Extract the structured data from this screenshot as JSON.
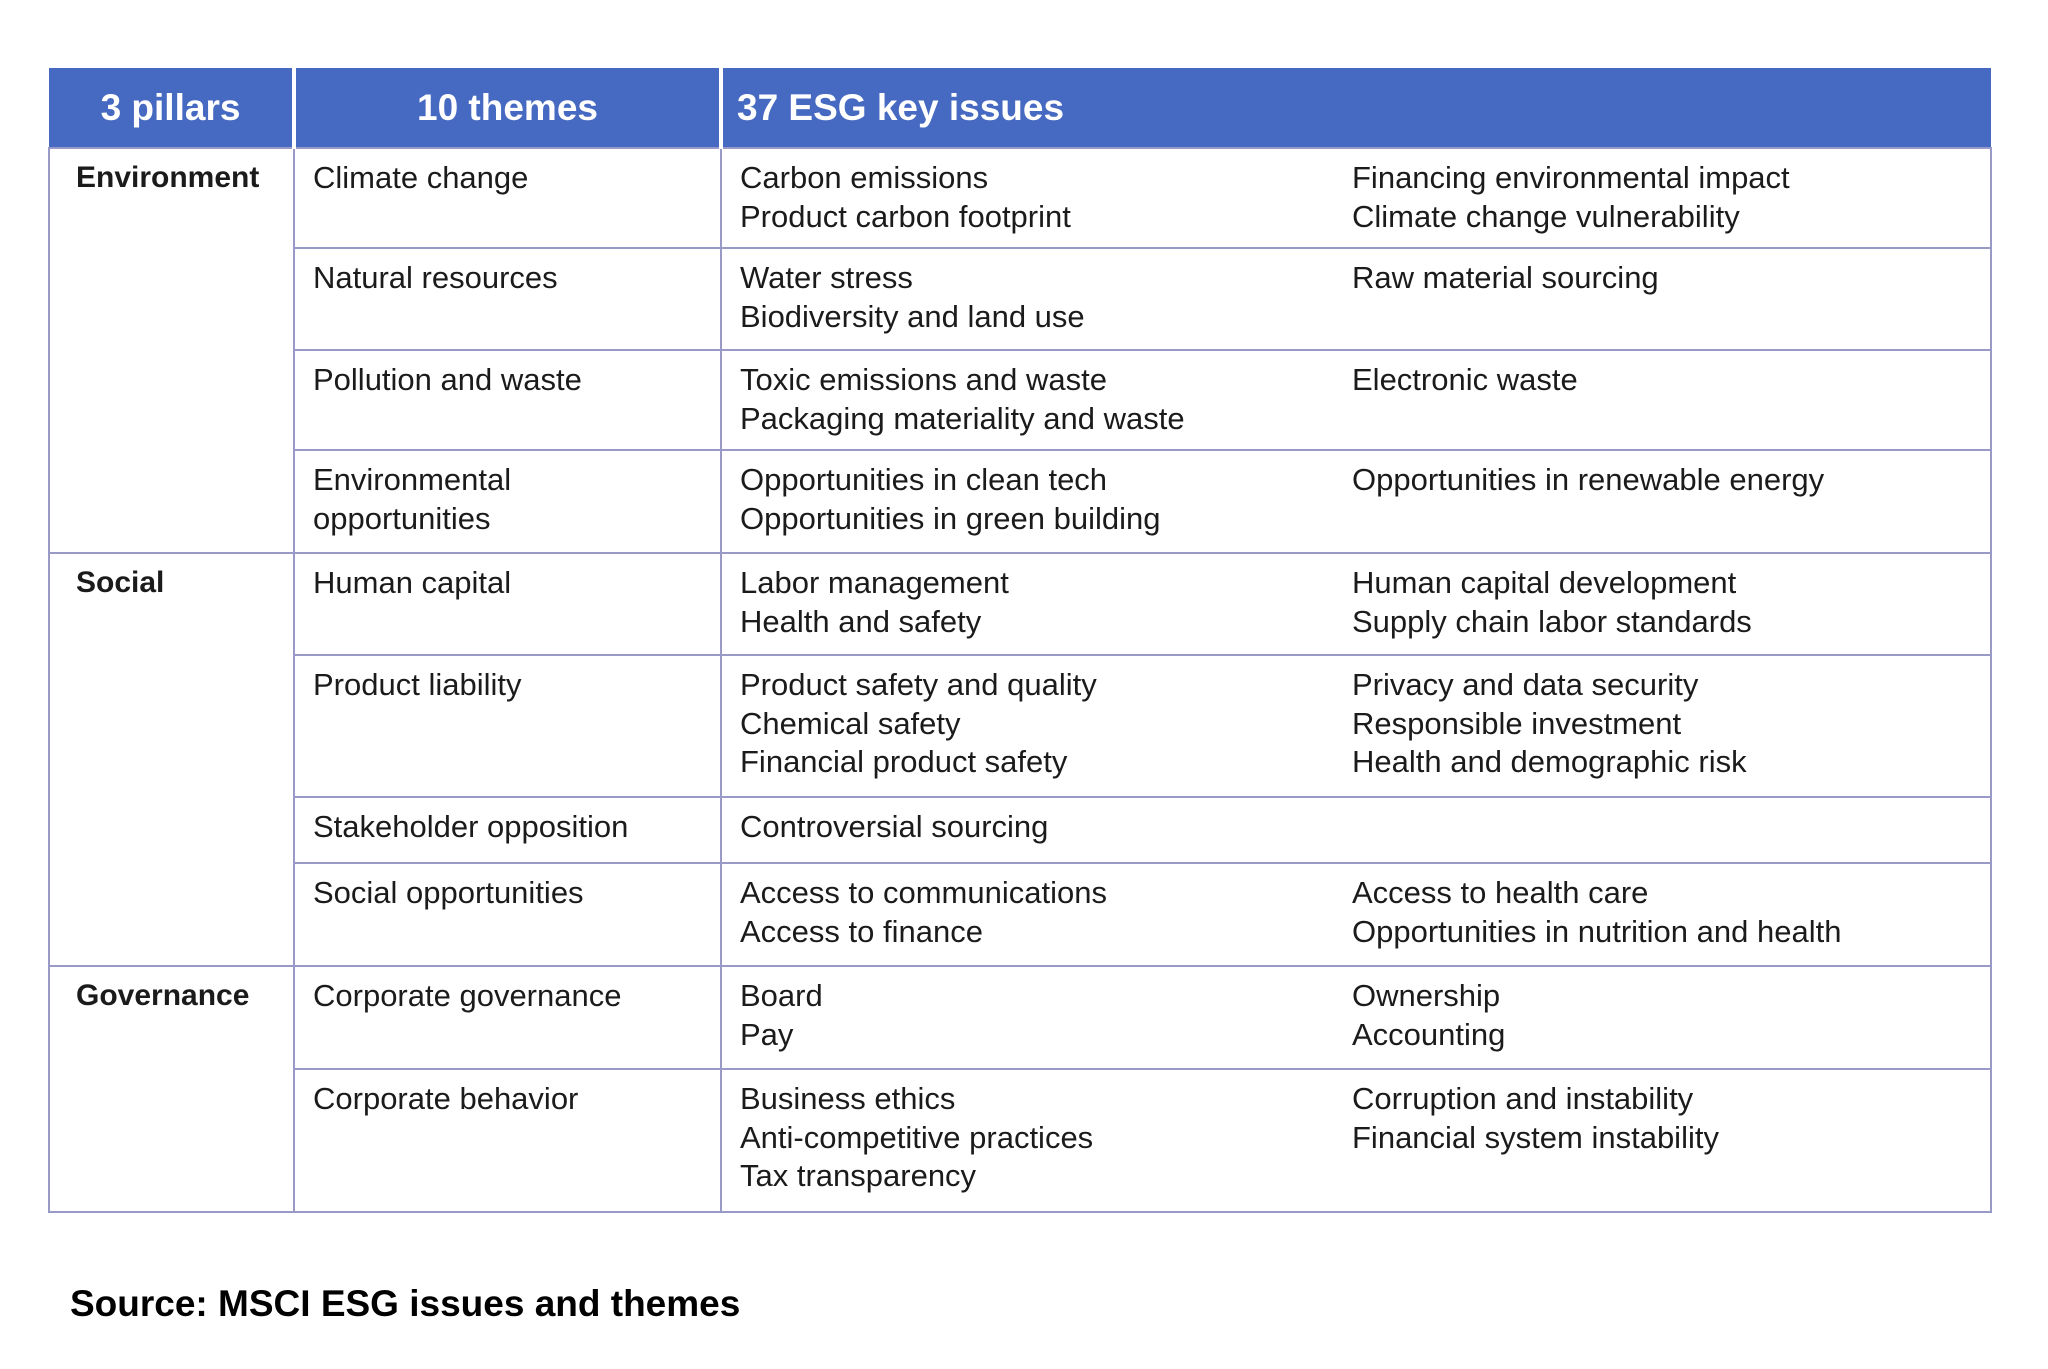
{
  "header": {
    "pillars": "3 pillars",
    "themes": "10 themes",
    "issues": "37 ESG key issues"
  },
  "pillars": [
    {
      "name": "Environment",
      "themes": [
        {
          "name": [
            "Climate change"
          ],
          "issues_left": [
            "Carbon emissions",
            "Product carbon footprint"
          ],
          "issues_right": [
            "Financing environmental impact",
            "Climate change vulnerability"
          ]
        },
        {
          "name": [
            "Natural resources"
          ],
          "issues_left": [
            "Water stress",
            "Biodiversity and land use"
          ],
          "issues_right": [
            "Raw material sourcing"
          ]
        },
        {
          "name": [
            "Pollution and waste"
          ],
          "issues_left": [
            "Toxic emissions and waste",
            "Packaging materiality and waste"
          ],
          "issues_right": [
            "Electronic waste"
          ]
        },
        {
          "name": [
            "Environmental",
            "opportunities"
          ],
          "issues_left": [
            "Opportunities in clean tech",
            "Opportunities in green building"
          ],
          "issues_right": [
            "Opportunities in renewable energy"
          ]
        }
      ]
    },
    {
      "name": "Social",
      "themes": [
        {
          "name": [
            "Human capital"
          ],
          "issues_left": [
            "Labor management",
            "Health and safety"
          ],
          "issues_right": [
            "Human capital development",
            "Supply chain labor standards"
          ]
        },
        {
          "name": [
            "Product liability"
          ],
          "issues_left": [
            "Product safety and quality",
            "Chemical safety",
            "Financial product safety"
          ],
          "issues_right": [
            "Privacy and data security",
            "Responsible investment",
            "Health and demographic risk"
          ]
        },
        {
          "name": [
            "Stakeholder opposition"
          ],
          "issues_left": [
            "Controversial sourcing"
          ],
          "issues_right": []
        },
        {
          "name": [
            "Social opportunities"
          ],
          "issues_left": [
            "Access to communications",
            "Access to finance"
          ],
          "issues_right": [
            "Access to health care",
            "Opportunities in nutrition and health"
          ]
        }
      ]
    },
    {
      "name": "Governance",
      "themes": [
        {
          "name": [
            "Corporate governance"
          ],
          "issues_left": [
            "Board",
            "Pay"
          ],
          "issues_right": [
            "Ownership",
            "Accounting"
          ]
        },
        {
          "name": [
            "Corporate behavior"
          ],
          "issues_left": [
            "Business ethics",
            "Anti-competitive practices",
            "Tax transparency"
          ],
          "issues_right": [
            "Corruption and instability",
            "Financial system instability"
          ]
        }
      ]
    }
  ],
  "source": "Source: MSCI ESG issues and themes",
  "colors": {
    "header_bg": "#4669c1",
    "header_text": "#ffffff",
    "grid": "#9a9ac8"
  }
}
